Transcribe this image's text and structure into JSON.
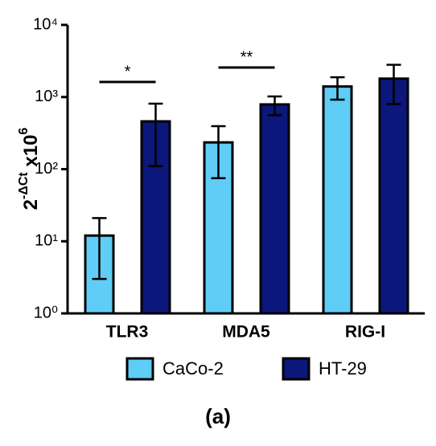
{
  "chart_data": {
    "type": "bar",
    "log_scale": true,
    "ylabel_parts": [
      "2",
      "-ΔCt",
      " x10",
      "6"
    ],
    "categories": [
      "TLR3",
      "MDA5",
      "RIG-I"
    ],
    "series": [
      {
        "name": "CaCo-2",
        "color": "#5fcdf5",
        "values": [
          12,
          235,
          1400
        ],
        "errors": [
          9,
          160,
          480
        ]
      },
      {
        "name": "HT-29",
        "color": "#0b177a",
        "values": [
          460,
          790,
          1800
        ],
        "errors": [
          350,
          230,
          1000
        ]
      }
    ],
    "annotations": [
      "*",
      "**"
    ],
    "ylim": [
      1,
      10000
    ],
    "yticks": [
      {
        "value": 1,
        "label": "10⁰"
      },
      {
        "value": 10,
        "label": "10¹"
      },
      {
        "value": 100,
        "label": "10²"
      },
      {
        "value": 1000,
        "label": "10³"
      },
      {
        "value": 10000,
        "label": "10⁴"
      }
    ],
    "caption": "(a)"
  }
}
